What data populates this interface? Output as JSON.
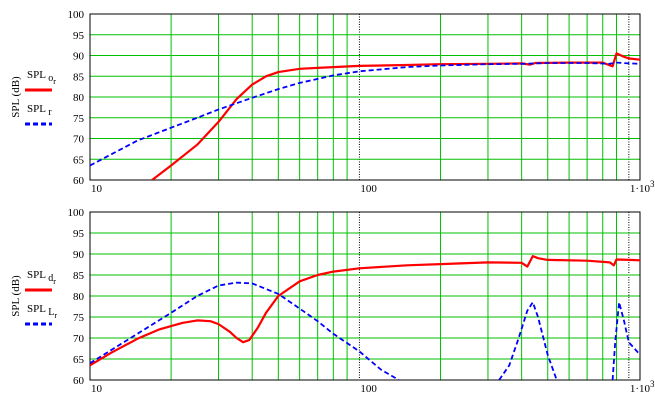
{
  "chart_data": [
    {
      "type": "line",
      "xscale": "log",
      "xlim": [
        10,
        1100
      ],
      "ylim": [
        60,
        100
      ],
      "ylabel": "SPL (dB)",
      "y_ticks": [
        "60",
        "65",
        "70",
        "75",
        "80",
        "85",
        "90",
        "95",
        "100"
      ],
      "y_tick_values": [
        60,
        65,
        70,
        75,
        80,
        85,
        90,
        95,
        100
      ],
      "x_ticks": [
        {
          "value": 10,
          "label": "10"
        },
        {
          "value": 100,
          "label": "100"
        },
        {
          "value": 1000,
          "label": "1·10",
          "sup": "3"
        }
      ],
      "grid": true,
      "legend_position": "left",
      "series": [
        {
          "name": "SPL",
          "sub": "o",
          "subsub": "r",
          "color": "#ff0000",
          "dash": "solid",
          "width": 2.2,
          "points": [
            [
              17,
              60
            ],
            [
              20,
              63.5
            ],
            [
              25,
              68.5
            ],
            [
              30,
              74
            ],
            [
              35,
              79.5
            ],
            [
              40,
              83
            ],
            [
              45,
              85
            ],
            [
              50,
              86
            ],
            [
              60,
              86.8
            ],
            [
              70,
              87
            ],
            [
              80,
              87.2
            ],
            [
              100,
              87.5
            ],
            [
              150,
              87.7
            ],
            [
              200,
              87.9
            ],
            [
              300,
              88
            ],
            [
              400,
              88.1
            ],
            [
              430,
              87.8
            ],
            [
              450,
              88.2
            ],
            [
              600,
              88.3
            ],
            [
              800,
              88.3
            ],
            [
              870,
              87.4
            ],
            [
              900,
              90.5
            ],
            [
              950,
              89.8
            ],
            [
              1000,
              89.3
            ],
            [
              1100,
              89
            ]
          ]
        },
        {
          "name": "SPL",
          "sub": "r",
          "subsub": "",
          "color": "#0000ff",
          "dash": "dashed",
          "width": 1.8,
          "points": [
            [
              10,
              63.5
            ],
            [
              12,
              66.2
            ],
            [
              15,
              69.5
            ],
            [
              20,
              72.6
            ],
            [
              25,
              75
            ],
            [
              30,
              77
            ],
            [
              40,
              79.8
            ],
            [
              50,
              81.9
            ],
            [
              60,
              83.4
            ],
            [
              80,
              85.2
            ],
            [
              100,
              86.2
            ],
            [
              150,
              87.2
            ],
            [
              200,
              87.6
            ],
            [
              300,
              87.9
            ],
            [
              400,
              88
            ],
            [
              500,
              88.2
            ],
            [
              700,
              88.2
            ],
            [
              850,
              88
            ],
            [
              900,
              88.3
            ],
            [
              1000,
              88.1
            ],
            [
              1100,
              88
            ]
          ]
        }
      ]
    },
    {
      "type": "line",
      "xscale": "log",
      "xlim": [
        10,
        1100
      ],
      "ylim": [
        60,
        100
      ],
      "ylabel": "SPL (dB)",
      "y_ticks": [
        "60",
        "65",
        "70",
        "75",
        "80",
        "85",
        "90",
        "95",
        "100"
      ],
      "y_tick_values": [
        60,
        65,
        70,
        75,
        80,
        85,
        90,
        95,
        100
      ],
      "x_ticks": [
        {
          "value": 10,
          "label": "10"
        },
        {
          "value": 100,
          "label": "100"
        },
        {
          "value": 1000,
          "label": "1·10",
          "sup": "3"
        }
      ],
      "grid": true,
      "legend_position": "left",
      "series": [
        {
          "name": "SPL",
          "sub": "d",
          "subsub": "r",
          "color": "#ff0000",
          "dash": "solid",
          "width": 2.2,
          "points": [
            [
              10,
              63.5
            ],
            [
              12,
              66.5
            ],
            [
              15,
              69.8
            ],
            [
              18,
              72
            ],
            [
              22,
              73.6
            ],
            [
              25,
              74.2
            ],
            [
              28,
              74
            ],
            [
              30,
              73.3
            ],
            [
              33,
              71.5
            ],
            [
              35,
              70
            ],
            [
              37,
              69
            ],
            [
              39,
              69.5
            ],
            [
              42,
              72.5
            ],
            [
              45,
              76
            ],
            [
              50,
              80
            ],
            [
              60,
              83.5
            ],
            [
              70,
              85
            ],
            [
              80,
              85.8
            ],
            [
              100,
              86.6
            ],
            [
              150,
              87.3
            ],
            [
              200,
              87.6
            ],
            [
              300,
              88
            ],
            [
              400,
              87.9
            ],
            [
              420,
              87
            ],
            [
              440,
              89.5
            ],
            [
              460,
              89
            ],
            [
              500,
              88.6
            ],
            [
              700,
              88.4
            ],
            [
              850,
              88
            ],
            [
              880,
              87.3
            ],
            [
              900,
              88.7
            ],
            [
              1000,
              88.6
            ],
            [
              1100,
              88.5
            ]
          ]
        },
        {
          "name": "SPL",
          "sub": "L",
          "subsub": "r",
          "color": "#0000ff",
          "dash": "dashed",
          "width": 1.8,
          "points": [
            [
              10,
              64
            ],
            [
              15,
              71
            ],
            [
              20,
              76
            ],
            [
              25,
              80
            ],
            [
              30,
              82.5
            ],
            [
              35,
              83.2
            ],
            [
              40,
              83
            ],
            [
              50,
              80.5
            ],
            [
              60,
              77
            ],
            [
              70,
              74
            ],
            [
              80,
              71
            ],
            [
              100,
              66.8
            ],
            [
              120,
              62.5
            ],
            [
              140,
              60
            ]
          ],
          "segments": [
            [
              [
                330,
                60
              ],
              [
                360,
                63.5
              ],
              [
                390,
                70
              ],
              [
                420,
                76.5
              ],
              [
                440,
                78.5
              ],
              [
                460,
                75
              ],
              [
                500,
                66
              ],
              [
                540,
                60
              ]
            ],
            [
              [
                870,
                60
              ],
              [
                890,
                69
              ],
              [
                920,
                78.5
              ],
              [
                960,
                74
              ],
              [
                1000,
                69
              ],
              [
                1100,
                66
              ]
            ]
          ]
        }
      ]
    }
  ]
}
